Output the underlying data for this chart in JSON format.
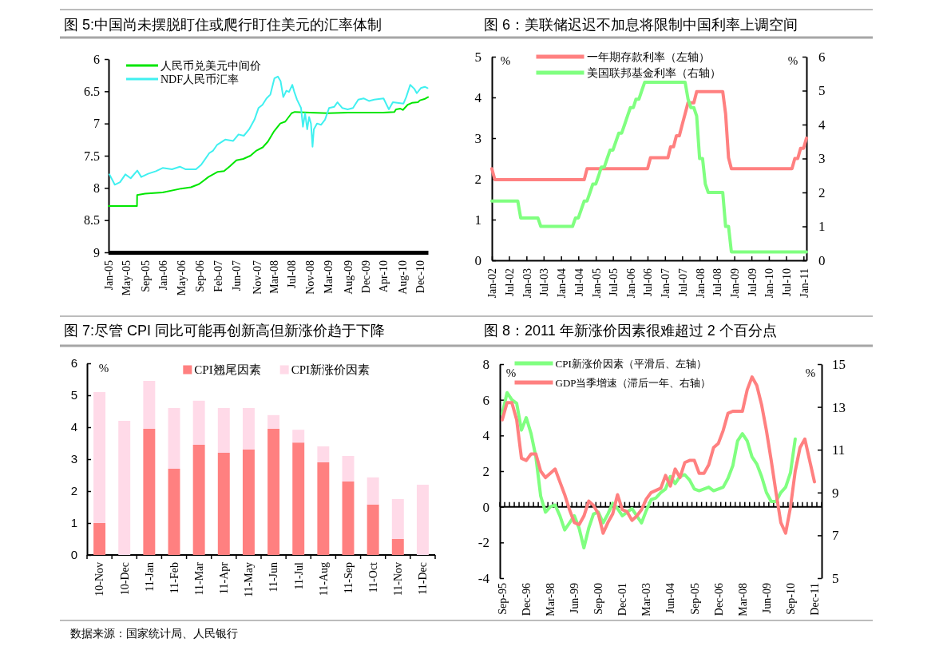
{
  "chart_data": [
    {
      "type": "line",
      "title": "图 5:中国尚未摆脱盯住或爬行盯住美元的汇率体制",
      "legend": "top left",
      "xlim": [
        "2005-01-04",
        "2011-02-09"
      ],
      "xticks": [
        {
          "value": "2005-01-04",
          "label": "Jan-05"
        },
        {
          "value": "2005-05-06",
          "label": "May-05"
        },
        {
          "value": "2005-09-13",
          "label": "Sep-05"
        },
        {
          "value": "2006-01-16",
          "label": "Jan-06"
        },
        {
          "value": "2006-05-26",
          "label": "May-06"
        },
        {
          "value": "2006-09-27",
          "label": "Sep-06"
        },
        {
          "value": "2007-02-04",
          "label": "Feb-07"
        },
        {
          "value": "2007-06-14",
          "label": "Jun-07"
        },
        {
          "value": "2007-11-01",
          "label": "Nov-07"
        },
        {
          "value": "2008-03-01",
          "label": "Mar-08"
        },
        {
          "value": "2008-07-01",
          "label": "Jul-08"
        },
        {
          "value": "2008-11-07",
          "label": "Nov-08"
        },
        {
          "value": "2009-03-13",
          "label": "Mar-09"
        },
        {
          "value": "2009-08-01",
          "label": "Aug-09"
        },
        {
          "value": "2009-12-01",
          "label": "Dec-09"
        },
        {
          "value": "2010-04-03",
          "label": "Apr-10"
        },
        {
          "value": "2010-08-15",
          "label": "Aug-10"
        },
        {
          "value": "2010-12-15",
          "label": "Dec-10"
        }
      ],
      "ylim": [
        9,
        6
      ],
      "yticks": [
        6,
        6.5,
        7,
        7.5,
        8,
        8.5,
        9
      ],
      "series": [
        {
          "name": "人民币兑美元中间价",
          "color": "#00e600",
          "x": [
            "2005-01-04",
            "2005-07-21",
            "2005-07-22",
            "2005-09-15",
            "2005-11-15",
            "2006-01-16",
            "2006-05-26",
            "2006-08-01",
            "2006-09-27",
            "2006-12-01",
            "2007-02-04",
            "2007-03-20",
            "2007-05-01",
            "2007-06-14",
            "2007-08-01",
            "2007-09-20",
            "2007-11-01",
            "2007-12-15",
            "2008-01-20",
            "2008-03-03",
            "2008-04-15",
            "2008-05-20",
            "2008-07-03",
            "2008-07-25",
            "2008-11-07",
            "2009-03-13",
            "2009-08-01",
            "2009-12-01",
            "2010-04-03",
            "2010-06-20",
            "2010-07-01",
            "2010-08-01",
            "2010-08-18",
            "2010-09-20",
            "2010-10-20",
            "2010-12-01",
            "2010-12-15",
            "2011-01-15",
            "2011-02-09"
          ],
          "values": [
            8.28,
            8.28,
            8.11,
            8.09,
            8.08,
            8.07,
            8.01,
            7.99,
            7.94,
            7.83,
            7.75,
            7.74,
            7.66,
            7.57,
            7.55,
            7.5,
            7.42,
            7.37,
            7.28,
            7.12,
            7.0,
            6.97,
            6.84,
            6.82,
            6.83,
            6.84,
            6.83,
            6.83,
            6.83,
            6.82,
            6.78,
            6.77,
            6.79,
            6.71,
            6.68,
            6.67,
            6.64,
            6.62,
            6.59
          ]
        },
        {
          "name": "NDF人民币汇率",
          "color": "#40f0f0",
          "x": [
            "2005-01-10",
            "2005-02-16",
            "2005-03-25",
            "2005-05-01",
            "2005-06-07",
            "2005-07-23",
            "2005-08-20",
            "2005-10-06",
            "2005-11-30",
            "2006-01-16",
            "2006-03-22",
            "2006-05-16",
            "2006-06-23",
            "2006-09-05",
            "2006-10-12",
            "2006-12-07",
            "2007-01-03",
            "2007-01-31",
            "2007-03-28",
            "2007-05-23",
            "2007-06-29",
            "2007-08-05",
            "2007-09-11",
            "2007-10-18",
            "2007-11-15",
            "2007-12-13",
            "2008-01-10",
            "2008-02-06",
            "2008-03-05",
            "2008-03-29",
            "2008-04-17",
            "2008-05-06",
            "2008-05-28",
            "2008-06-15",
            "2008-07-08",
            "2008-07-22",
            "2008-08-10",
            "2008-09-07",
            "2008-09-20",
            "2008-10-05",
            "2008-10-20",
            "2008-11-02",
            "2008-11-15",
            "2008-11-26",
            "2008-12-05",
            "2008-12-27",
            "2009-01-24",
            "2009-02-21",
            "2009-03-21",
            "2009-04-27",
            "2009-05-19",
            "2009-06-22",
            "2009-07-29",
            "2009-09-04",
            "2009-10-11",
            "2009-11-17",
            "2009-12-24",
            "2010-01-30",
            "2010-04-05",
            "2010-05-12",
            "2010-06-09",
            "2010-08-22",
            "2010-09-10",
            "2010-10-08",
            "2010-11-05",
            "2010-11-23",
            "2010-12-21",
            "2011-01-18",
            "2011-02-06"
          ],
          "values": [
            7.79,
            7.95,
            7.91,
            7.79,
            7.85,
            7.73,
            7.83,
            7.78,
            7.74,
            7.69,
            7.71,
            7.67,
            7.71,
            7.71,
            7.64,
            7.46,
            7.42,
            7.33,
            7.25,
            7.27,
            7.17,
            7.19,
            7.09,
            6.94,
            6.76,
            6.71,
            6.61,
            6.55,
            6.3,
            6.27,
            6.34,
            6.59,
            6.49,
            6.51,
            6.4,
            6.51,
            6.63,
            6.76,
            7.05,
            6.84,
            7.09,
            6.9,
            7.0,
            7.36,
            7.09,
            7.0,
            7.02,
            6.94,
            6.76,
            6.74,
            6.67,
            6.76,
            6.78,
            6.76,
            6.63,
            6.61,
            6.65,
            6.63,
            6.61,
            6.78,
            6.67,
            6.69,
            6.59,
            6.4,
            6.46,
            6.53,
            6.45,
            6.43,
            6.45
          ]
        }
      ]
    },
    {
      "type": "line",
      "title": "图 6：美联储迟迟不加息将限制中国利率上调空间",
      "legend": "top",
      "ylabel": "%",
      "y2label": "%",
      "xlim": [
        "2002-01",
        "2011-02"
      ],
      "xticks": [
        {
          "value": "2002-01",
          "label": "Jan-02"
        },
        {
          "value": "2002-07",
          "label": "Jul-02"
        },
        {
          "value": "2003-01",
          "label": "Jan-03"
        },
        {
          "value": "2003-07",
          "label": "Jul-03"
        },
        {
          "value": "2004-01",
          "label": "Jan-04"
        },
        {
          "value": "2004-07",
          "label": "Jul-04"
        },
        {
          "value": "2005-01",
          "label": "Jan-05"
        },
        {
          "value": "2005-07",
          "label": "Jul-05"
        },
        {
          "value": "2006-01",
          "label": "Jan-06"
        },
        {
          "value": "2006-07",
          "label": "Jul-06"
        },
        {
          "value": "2007-01",
          "label": "Jan-07"
        },
        {
          "value": "2007-07",
          "label": "Jul-07"
        },
        {
          "value": "2008-01",
          "label": "Jan-08"
        },
        {
          "value": "2008-07",
          "label": "Jul-08"
        },
        {
          "value": "2009-01",
          "label": "Jan-09"
        },
        {
          "value": "2009-07",
          "label": "Jul-09"
        },
        {
          "value": "2010-01",
          "label": "Jan-10"
        },
        {
          "value": "2010-07",
          "label": "Jul-10"
        },
        {
          "value": "2011-01",
          "label": "Jan-11"
        }
      ],
      "ylim": [
        0,
        5
      ],
      "yticks": [
        0,
        1,
        2,
        3,
        4,
        5
      ],
      "y2lim": [
        0,
        6
      ],
      "y2ticks": [
        0,
        1,
        2,
        3,
        4,
        5,
        6
      ],
      "series": [
        {
          "name": "一年期存款利率（左轴）",
          "color": "#ff8080",
          "x": [
            "2002-01",
            "2002-02",
            "2004-09",
            "2004-10",
            "2006-07",
            "2006-08",
            "2007-02",
            "2007-03",
            "2007-04",
            "2007-05",
            "2007-06",
            "2007-07",
            "2007-08",
            "2007-09",
            "2007-11",
            "2007-12",
            "2008-09",
            "2008-10",
            "2008-11",
            "2008-12",
            "2010-09",
            "2010-10",
            "2010-11",
            "2010-12",
            "2011-01",
            "2011-02"
          ],
          "values": [
            2.25,
            1.98,
            1.98,
            2.25,
            2.25,
            2.52,
            2.52,
            2.79,
            2.79,
            3.06,
            3.06,
            3.33,
            3.6,
            3.87,
            3.87,
            4.14,
            4.14,
            3.6,
            2.52,
            2.25,
            2.25,
            2.5,
            2.5,
            2.75,
            2.75,
            3.0
          ]
        },
        {
          "name": "美国联邦基金利率（右轴）",
          "color": "#80ff80",
          "axis": "y2",
          "x": [
            "2002-01",
            "2002-10",
            "2002-11",
            "2003-05",
            "2003-06",
            "2004-05",
            "2004-06",
            "2004-07",
            "2004-08",
            "2004-09",
            "2004-10",
            "2004-11",
            "2004-12",
            "2005-01",
            "2005-02",
            "2005-03",
            "2005-04",
            "2005-05",
            "2005-06",
            "2005-07",
            "2005-08",
            "2005-09",
            "2005-10",
            "2005-11",
            "2005-12",
            "2006-01",
            "2006-02",
            "2006-03",
            "2006-04",
            "2006-05",
            "2006-06",
            "2007-08",
            "2007-09",
            "2007-10",
            "2007-11",
            "2007-12",
            "2008-01",
            "2008-02",
            "2008-03",
            "2008-04",
            "2008-09",
            "2008-10",
            "2008-11",
            "2008-12",
            "2011-02"
          ],
          "values": [
            1.75,
            1.75,
            1.25,
            1.25,
            1.0,
            1.0,
            1.25,
            1.25,
            1.5,
            1.75,
            1.75,
            2.0,
            2.25,
            2.25,
            2.5,
            2.75,
            2.75,
            3.0,
            3.25,
            3.25,
            3.5,
            3.75,
            3.75,
            4.0,
            4.25,
            4.5,
            4.5,
            4.75,
            4.75,
            5.0,
            5.25,
            5.25,
            4.75,
            4.5,
            4.5,
            4.25,
            3.0,
            3.0,
            2.25,
            2.0,
            2.0,
            1.0,
            1.0,
            0.25,
            0.25
          ]
        }
      ]
    },
    {
      "type": "bar",
      "stacked": true,
      "title": "图 7:尽管 CPI 同比可能再创新高但新涨价趋于下降",
      "legend": "top right",
      "ylabel": "%",
      "categories": [
        "10-Nov",
        "10-Dec",
        "11-Jan",
        "11-Feb",
        "11-Mar",
        "11-Apr",
        "11-May",
        "11-Jun",
        "11-Jul",
        "11-Aug",
        "11-Sep",
        "11-Oct",
        "11-Nov",
        "11-Dec"
      ],
      "ylim": [
        0,
        6
      ],
      "yticks": [
        0,
        1,
        2,
        3,
        4,
        5,
        6
      ],
      "series": [
        {
          "name": "CPI翘尾因素",
          "color": "#ff8080",
          "values": [
            1.0,
            null,
            3.95,
            2.7,
            3.45,
            3.2,
            3.3,
            3.95,
            3.52,
            2.9,
            2.3,
            1.58,
            0.5,
            null
          ]
        },
        {
          "name": "CPI新涨价因素",
          "color": "#ffdae8",
          "values": [
            4.1,
            4.2,
            1.5,
            1.9,
            1.38,
            1.4,
            1.3,
            0.43,
            0.4,
            0.5,
            0.8,
            0.85,
            1.25,
            2.2
          ]
        }
      ],
      "annotations": [
        "数据来源：国家统计局、人民银行"
      ]
    },
    {
      "type": "line",
      "title": "图 8：2011 年新涨价因素很难超过 2 个百分点",
      "legend": "top",
      "ylabel": "%",
      "y2label": "%",
      "categories": [
        "Sep-95",
        null,
        null,
        null,
        null,
        "Dec-96",
        null,
        null,
        null,
        null,
        "Mar-98",
        null,
        null,
        null,
        null,
        "Jun-99",
        null,
        null,
        null,
        null,
        "Sep-00",
        null,
        null,
        null,
        null,
        "Dec-01",
        null,
        null,
        null,
        null,
        "Mar-03",
        null,
        null,
        null,
        null,
        "Jun-04",
        null,
        null,
        null,
        null,
        "Sep-05",
        null,
        null,
        null,
        null,
        "Dec-06",
        null,
        null,
        null,
        null,
        "Mar-08",
        null,
        null,
        null,
        null,
        "Jun-09",
        null,
        null,
        null,
        null,
        "Sep-10",
        null,
        null,
        null,
        null,
        "Dec-11",
        null
      ],
      "ylim": [
        -4,
        8
      ],
      "yticks": [
        -4,
        -2,
        0,
        2,
        4,
        6,
        8
      ],
      "y2lim": [
        5,
        15
      ],
      "y2ticks": [
        5,
        7,
        9,
        11,
        13,
        15
      ],
      "series": [
        {
          "name": "CPI新涨价因素（平滑后、左轴）",
          "color": "#80ff80",
          "values": [
            5.2,
            6.4,
            6.0,
            5.8,
            4.3,
            5.0,
            4.1,
            2.8,
            0.6,
            -0.3,
            0.0,
            0.1,
            -0.5,
            -1.3,
            -0.9,
            -0.5,
            -1.2,
            -2.3,
            -1.2,
            -0.4,
            -0.3,
            -0.9,
            -0.4,
            0.2,
            -0.1,
            -0.5,
            -0.3,
            -0.1,
            -0.5,
            -0.9,
            -0.2,
            0.4,
            0.5,
            0.8,
            1.0,
            1.7,
            1.3,
            1.7,
            1.8,
            1.5,
            1.0,
            0.9,
            1.0,
            1.1,
            0.9,
            1.0,
            1.1,
            1.6,
            2.3,
            3.7,
            4.1,
            3.7,
            2.8,
            2.4,
            1.7,
            0.8,
            0.3,
            0.3,
            0.8,
            1.1,
            1.9,
            3.8,
            null,
            null,
            null,
            null,
            null
          ]
        },
        {
          "name": "GDP当季增速（滞后一年、右轴）",
          "color": "#ff8080",
          "axis": "y2",
          "values": [
            12.4,
            13.2,
            13.2,
            12.4,
            10.6,
            10.5,
            10.8,
            10.8,
            10.0,
            9.7,
            9.9,
            10.1,
            9.5,
            8.9,
            8.2,
            7.6,
            7.5,
            7.9,
            8.6,
            8.4,
            8.0,
            7.1,
            7.6,
            8.0,
            8.9,
            8.2,
            8.1,
            7.7,
            7.9,
            8.2,
            8.7,
            9.0,
            9.1,
            9.2,
            9.8,
            9.3,
            10.1,
            9.7,
            10.4,
            10.5,
            10.5,
            9.9,
            9.9,
            10.3,
            11.1,
            11.3,
            11.9,
            12.7,
            12.8,
            12.8,
            12.8,
            13.8,
            14.4,
            14.0,
            13.1,
            11.9,
            10.5,
            9.0,
            7.6,
            7.1,
            8.3,
            10.0,
            11.1,
            11.5,
            10.5,
            9.5,
            null
          ]
        }
      ]
    }
  ]
}
